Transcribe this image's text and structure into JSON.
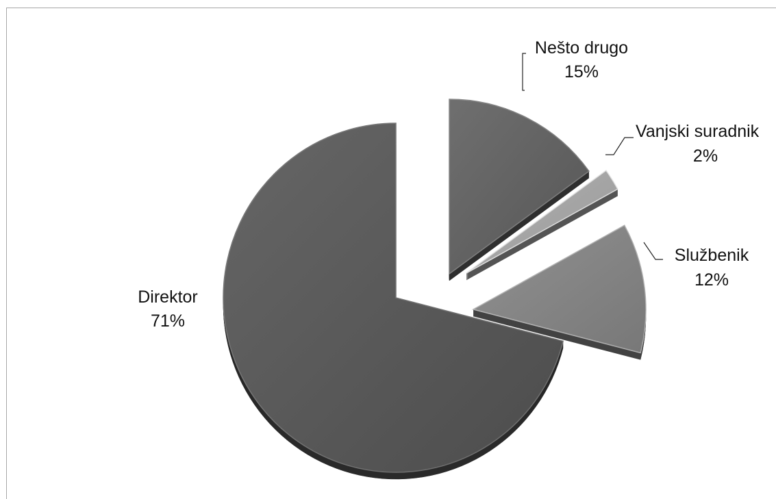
{
  "chart_data": {
    "type": "pie",
    "style": "3d-exploded",
    "categories": [
      "Direktor",
      "Nešto drugo",
      "Vanjski suradnik",
      "Službenik"
    ],
    "values": [
      71,
      15,
      2,
      12
    ],
    "percent_labels": [
      "71%",
      "15%",
      "2%",
      "12%"
    ],
    "colors": [
      "#555555",
      "#5f5f5f",
      "#a9a9a9",
      "#858585"
    ],
    "legend": "none"
  }
}
